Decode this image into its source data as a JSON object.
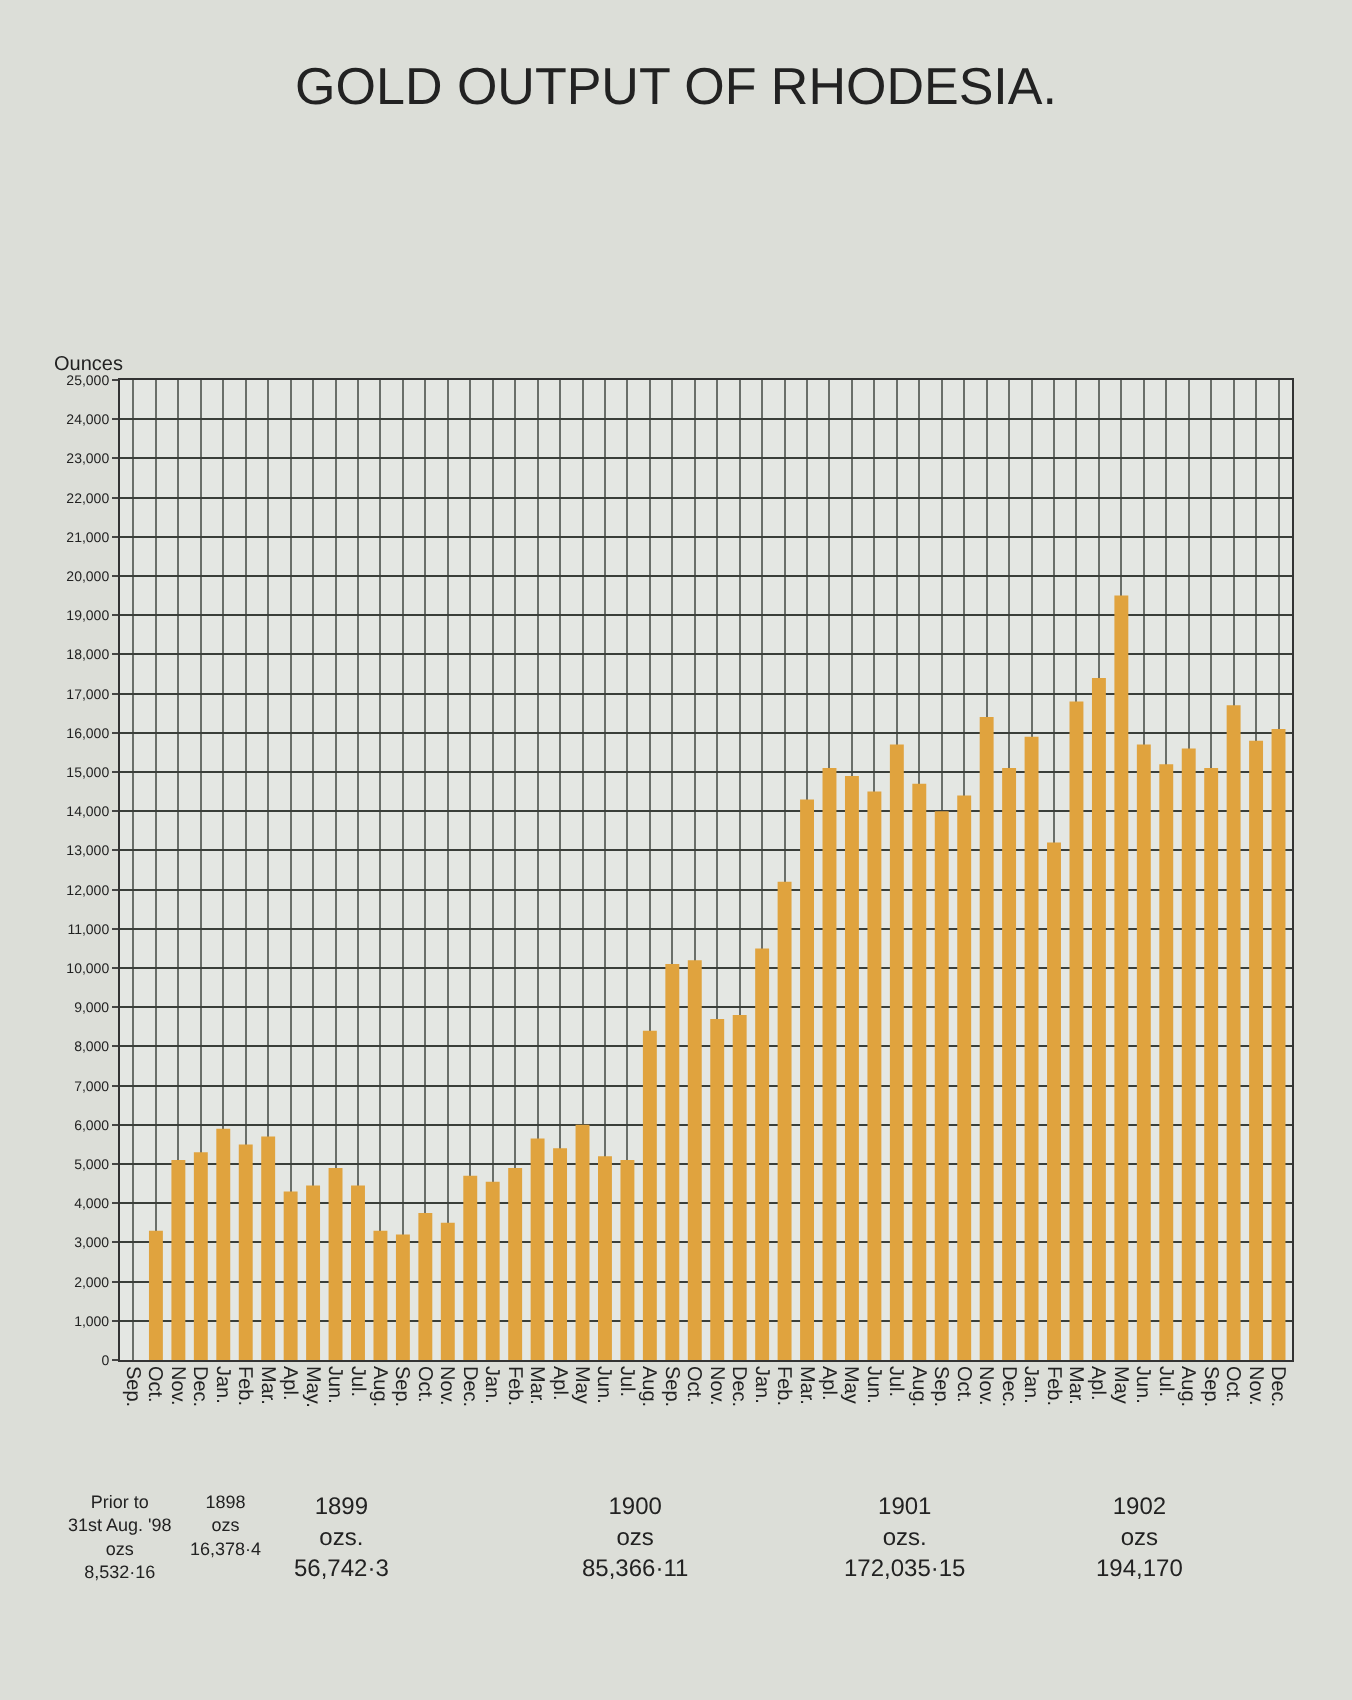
{
  "chart_data": {
    "type": "bar",
    "title": "GOLD OUTPUT OF RHODESIA.",
    "ylabel": "Ounces",
    "categories": [
      "Sep.",
      "Oct.",
      "Nov.",
      "Dec.",
      "Jan.",
      "Feb.",
      "Mar.",
      "Apl.",
      "May.",
      "Jun.",
      "Jul.",
      "Aug.",
      "Sep.",
      "Oct.",
      "Nov.",
      "Dec.",
      "Jan.",
      "Feb.",
      "Mar.",
      "Apl.",
      "May",
      "Jun.",
      "Jul.",
      "Aug.",
      "Sep.",
      "Oct.",
      "Nov.",
      "Dec.",
      "Jan.",
      "Feb.",
      "Mar.",
      "Apl.",
      "May",
      "Jun.",
      "Jul.",
      "Aug.",
      "Sep.",
      "Oct.",
      "Nov.",
      "Dec.",
      "Jan.",
      "Feb.",
      "Mar.",
      "Apl.",
      "May",
      "Jun.",
      "Jul.",
      "Aug.",
      "Sep.",
      "Oct.",
      "Nov.",
      "Dec."
    ],
    "values": [
      null,
      3300,
      5100,
      5300,
      5900,
      5500,
      5700,
      4300,
      4450,
      4900,
      4450,
      3300,
      3200,
      3750,
      3500,
      4700,
      4550,
      4900,
      5650,
      5400,
      6000,
      5200,
      5100,
      8400,
      10100,
      10200,
      8700,
      8800,
      10500,
      12200,
      14300,
      15100,
      14900,
      14500,
      15700,
      14700,
      14000,
      14400,
      16400,
      15100,
      15900,
      13200,
      16800,
      17400,
      19500,
      15700,
      15200,
      15600,
      15100,
      16700,
      15800,
      16100
    ],
    "color": "#e0a33e",
    "ylim": [
      0,
      25000
    ],
    "yticks": [
      0,
      {
        "value": 1000,
        "label": "1,000"
      },
      {
        "value": 2000,
        "label": "2,000"
      },
      {
        "value": 3000,
        "label": "3,000"
      },
      {
        "value": 4000,
        "label": "4,000"
      },
      {
        "value": 5000,
        "label": "5,000"
      },
      {
        "value": 6000,
        "label": "6,000"
      },
      {
        "value": 7000,
        "label": "7,000"
      },
      {
        "value": 8000,
        "label": "8,000"
      },
      {
        "value": 9000,
        "label": "9,000"
      },
      {
        "value": 10000,
        "label": "10,000"
      },
      {
        "value": 11000,
        "label": "11,000"
      },
      {
        "value": 12000,
        "label": "12,000"
      },
      {
        "value": 13000,
        "label": "13,000"
      },
      {
        "value": 14000,
        "label": "14,000"
      },
      {
        "value": 15000,
        "label": "15,000"
      },
      {
        "value": 16000,
        "label": "16,000"
      },
      {
        "value": 17000,
        "label": "17,000"
      },
      {
        "value": 18000,
        "label": "18,000"
      },
      {
        "value": 19000,
        "label": "19,000"
      },
      {
        "value": 20000,
        "label": "20,000"
      },
      {
        "value": 21000,
        "label": "21,000"
      },
      {
        "value": 22000,
        "label": "22,000"
      },
      {
        "value": 23000,
        "label": "23,000"
      },
      {
        "value": 24000,
        "label": "24,000"
      },
      {
        "value": 25000,
        "label": "25,000"
      }
    ],
    "grid": true,
    "annotations": [
      "Prior to\n31st Aug. '98\nozs\n8,532·16",
      "1898\nozs\n16,378·4",
      "1899\nozs.\n56,742·3",
      "1900\nozs\n85,366·11",
      "1901\nozs.\n172,035·15",
      "1902\nozs\n194,170"
    ]
  }
}
